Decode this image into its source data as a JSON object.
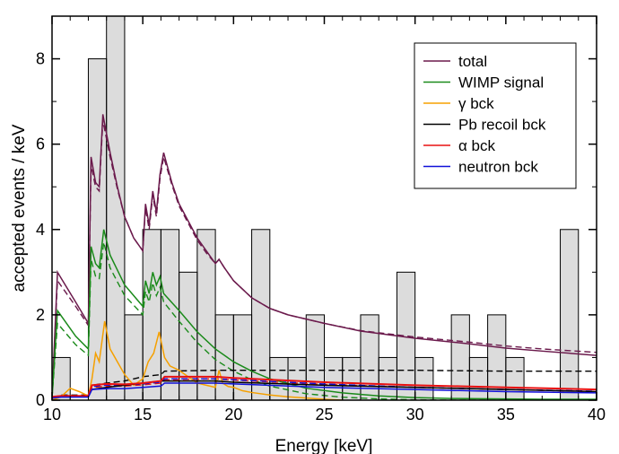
{
  "chart_data": {
    "type": "line",
    "xlabel": "Energy [keV]",
    "ylabel": "accepted events / keV",
    "xlim": [
      10,
      40
    ],
    "ylim": [
      0,
      9
    ],
    "x_ticks": [
      10,
      15,
      20,
      25,
      30,
      35,
      40
    ],
    "y_ticks": [
      0,
      2,
      4,
      6,
      8
    ],
    "grid": false,
    "legend_position": "top-right",
    "histogram": {
      "name": "data",
      "fill": "#dcdcdc",
      "stroke": "#000000",
      "edges": [
        10,
        11,
        12,
        13,
        14,
        15,
        16,
        17,
        18,
        19,
        20,
        21,
        22,
        23,
        24,
        25,
        26,
        27,
        28,
        29,
        30,
        31,
        32,
        33,
        34,
        35,
        36,
        37,
        38,
        39,
        40
      ],
      "counts": [
        1,
        0,
        8,
        9,
        2,
        4,
        4,
        3,
        4,
        2,
        2,
        4,
        1,
        1,
        2,
        1,
        1,
        2,
        1,
        3,
        1,
        0,
        2,
        1,
        2,
        1,
        0,
        0,
        4,
        0
      ]
    },
    "series": [
      {
        "name": "total",
        "color": "#6b1a4c",
        "x": [
          10,
          10.3,
          11.3,
          12,
          12.15,
          12.4,
          12.6,
          12.8,
          13.2,
          13.6,
          14,
          14.5,
          15,
          15.15,
          15.35,
          15.55,
          15.75,
          15.95,
          16.15,
          16.6,
          17,
          17.5,
          18,
          18.5,
          19,
          19.2,
          19.5,
          20,
          21,
          22,
          23,
          25,
          27,
          30,
          33,
          35,
          37,
          40
        ],
        "y": [
          0.05,
          3.0,
          2.3,
          1.8,
          5.7,
          5.1,
          5.0,
          6.7,
          5.8,
          5.0,
          4.3,
          3.8,
          3.5,
          4.6,
          4.1,
          4.9,
          4.4,
          5.3,
          5.8,
          5.1,
          4.6,
          4.2,
          3.8,
          3.5,
          3.2,
          3.3,
          3.1,
          2.8,
          2.4,
          2.15,
          2.0,
          1.8,
          1.62,
          1.45,
          1.32,
          1.22,
          1.15,
          1.05
        ]
      },
      {
        "name": "WIMP signal",
        "color": "#1a8a1a",
        "x": [
          10,
          10.3,
          11.3,
          12,
          12.15,
          12.4,
          12.6,
          12.85,
          13.2,
          14,
          15,
          15.15,
          15.35,
          15.55,
          15.75,
          15.95,
          16.15,
          17,
          18,
          19,
          20,
          21,
          22,
          24,
          26,
          28,
          30,
          32,
          35,
          37,
          40
        ],
        "y": [
          0.05,
          2.1,
          1.5,
          1.2,
          3.6,
          3.2,
          3.1,
          4.0,
          3.4,
          2.7,
          2.2,
          2.8,
          2.5,
          3.0,
          2.7,
          2.9,
          2.5,
          2.1,
          1.6,
          1.2,
          0.9,
          0.68,
          0.5,
          0.28,
          0.17,
          0.1,
          0.06,
          0.04,
          0.03,
          0.02,
          0.02
        ]
      },
      {
        "name": "γ bck",
        "color": "#f5a000",
        "x": [
          10,
          10.5,
          11,
          11.5,
          12,
          12.2,
          12.4,
          12.6,
          12.9,
          13.2,
          13.6,
          14,
          14.5,
          15,
          15.3,
          15.6,
          15.9,
          16.2,
          16.5,
          17,
          17.5,
          18,
          18.5,
          19,
          19.2,
          19.4,
          19.7,
          20,
          20.5,
          21,
          22,
          23,
          24,
          25,
          26
        ],
        "y": [
          0.0,
          0.08,
          0.28,
          0.2,
          0.1,
          0.5,
          1.1,
          0.9,
          1.85,
          1.2,
          0.9,
          0.6,
          0.35,
          0.5,
          0.9,
          1.1,
          1.6,
          1.0,
          0.8,
          0.7,
          0.55,
          0.4,
          0.35,
          0.3,
          0.7,
          0.4,
          0.32,
          0.3,
          0.22,
          0.18,
          0.12,
          0.08,
          0.05,
          0.02,
          0.0
        ]
      },
      {
        "name": "Pb recoil bck",
        "color": "#000000",
        "x": [
          10,
          10.5,
          12,
          12.2,
          13,
          14,
          15,
          16,
          16.5,
          17,
          19,
          20,
          25,
          30,
          35,
          40
        ],
        "y": [
          0.05,
          0.1,
          0.1,
          0.25,
          0.3,
          0.35,
          0.4,
          0.45,
          0.45,
          0.45,
          0.45,
          0.42,
          0.35,
          0.3,
          0.25,
          0.2
        ]
      },
      {
        "name": "α bck",
        "color": "#e81010",
        "x": [
          10,
          10.5,
          12,
          12.2,
          13,
          14,
          15,
          16,
          16.2,
          19,
          20,
          25,
          30,
          35,
          40
        ],
        "y": [
          0.08,
          0.1,
          0.1,
          0.35,
          0.38,
          0.37,
          0.4,
          0.45,
          0.55,
          0.55,
          0.52,
          0.42,
          0.35,
          0.3,
          0.25
        ]
      },
      {
        "name": "neutron bck",
        "color": "#1010d8",
        "x": [
          10,
          10.5,
          12,
          12.2,
          13,
          14,
          15,
          16,
          16.2,
          19,
          20,
          25,
          30,
          35,
          40
        ],
        "y": [
          0.05,
          0.07,
          0.07,
          0.25,
          0.27,
          0.27,
          0.3,
          0.33,
          0.4,
          0.4,
          0.38,
          0.3,
          0.25,
          0.2,
          0.17
        ]
      }
    ],
    "dashed_series": [
      {
        "color": "#6b1a4c",
        "x": [
          10,
          10.3,
          11.3,
          12,
          12.15,
          12.4,
          12.6,
          12.8,
          13.2,
          13.6,
          14,
          14.5,
          15,
          15.15,
          15.35,
          15.55,
          15.75,
          15.95,
          16.15,
          16.6,
          17,
          17.5,
          18,
          18.5,
          19,
          19.2,
          19.5,
          20,
          21,
          22,
          23,
          25,
          27,
          30,
          33,
          35,
          37,
          40
        ],
        "y": [
          0.05,
          2.8,
          2.2,
          1.75,
          5.5,
          5.0,
          4.9,
          6.55,
          5.7,
          4.95,
          4.3,
          3.8,
          3.5,
          4.5,
          4.0,
          4.8,
          4.3,
          5.2,
          5.7,
          5.05,
          4.55,
          4.15,
          3.75,
          3.45,
          3.2,
          3.3,
          3.1,
          2.8,
          2.4,
          2.15,
          2.0,
          1.8,
          1.63,
          1.48,
          1.36,
          1.27,
          1.2,
          1.12
        ]
      },
      {
        "color": "#1a8a1a",
        "x": [
          10,
          10.3,
          11.3,
          12,
          12.15,
          12.4,
          12.6,
          12.85,
          13.2,
          14,
          15,
          15.15,
          15.35,
          15.55,
          15.75,
          15.95,
          16.15,
          17,
          18,
          19,
          20,
          21,
          22,
          24,
          26,
          28,
          30,
          32,
          35,
          37,
          40
        ],
        "y": [
          0.05,
          1.8,
          1.3,
          1.05,
          3.3,
          2.9,
          2.85,
          3.7,
          3.1,
          2.45,
          2.0,
          2.55,
          2.3,
          2.75,
          2.45,
          2.65,
          2.3,
          1.85,
          1.35,
          0.95,
          0.68,
          0.48,
          0.33,
          0.15,
          0.07,
          0.03,
          0.01,
          0.0,
          0.0,
          0.0,
          0.0
        ]
      },
      {
        "color": "#000000",
        "x": [
          10,
          10.5,
          12,
          12.2,
          13,
          14,
          15,
          16,
          16.2,
          19,
          20,
          25,
          30,
          35,
          40
        ],
        "y": [
          0.05,
          0.12,
          0.12,
          0.35,
          0.4,
          0.45,
          0.55,
          0.6,
          0.68,
          0.7,
          0.7,
          0.7,
          0.7,
          0.68,
          0.68
        ]
      },
      {
        "color": "#e81010",
        "x": [
          10,
          10.5,
          12,
          12.2,
          13,
          14,
          15,
          16,
          16.2,
          19,
          20,
          25,
          30,
          35,
          40
        ],
        "y": [
          0.08,
          0.1,
          0.1,
          0.3,
          0.33,
          0.33,
          0.36,
          0.4,
          0.48,
          0.5,
          0.47,
          0.37,
          0.3,
          0.25,
          0.2
        ]
      },
      {
        "color": "#1010d8",
        "x": [
          10,
          10.5,
          12,
          12.2,
          13,
          14,
          15,
          16,
          16.2,
          19,
          20,
          25,
          30,
          35,
          40
        ],
        "y": [
          0.05,
          0.08,
          0.08,
          0.32,
          0.35,
          0.35,
          0.38,
          0.42,
          0.5,
          0.5,
          0.48,
          0.38,
          0.3,
          0.25,
          0.21
        ]
      }
    ]
  }
}
